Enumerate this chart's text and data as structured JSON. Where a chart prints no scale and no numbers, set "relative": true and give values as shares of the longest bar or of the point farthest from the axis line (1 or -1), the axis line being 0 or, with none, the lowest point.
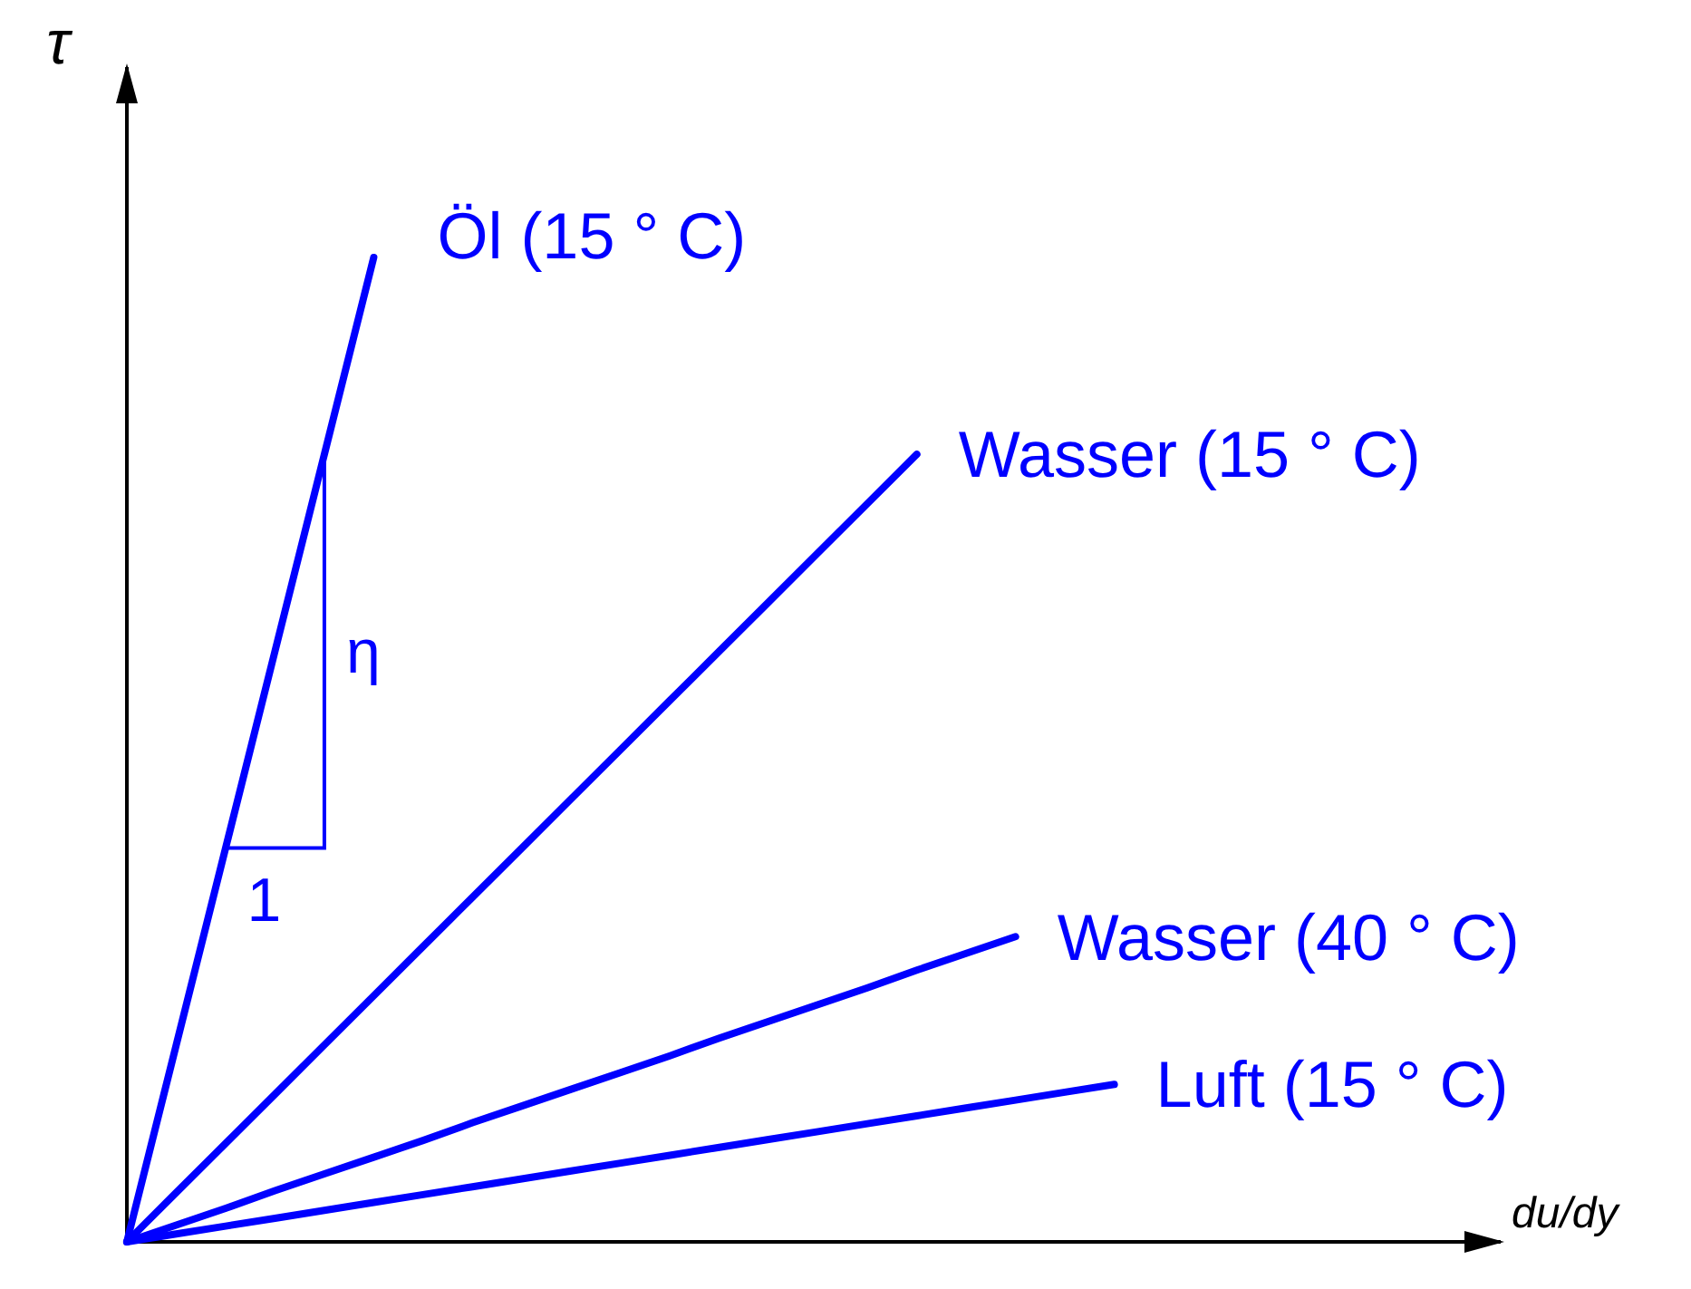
{
  "chart_data": {
    "type": "line",
    "relative": true,
    "ylabel": "τ",
    "marker": "none",
    "line_style": "solid",
    "annotations": [
      "η",
      "1",
      "du/dy"
    ],
    "categories": [
      null,
      null,
      null,
      null,
      null,
      null,
      null,
      null,
      null,
      null,
      null,
      null,
      null,
      null,
      null,
      null,
      null,
      null,
      null,
      null,
      null
    ],
    "series": [
      {
        "name": "Öl (15 ° C)",
        "color": "#0000ff",
        "values": [
          0,
          0.2,
          0.4,
          0.6,
          0.8,
          1,
          null,
          null,
          null,
          null,
          null,
          null,
          null,
          null,
          null,
          null,
          null,
          null,
          null,
          null,
          null
        ]
      },
      {
        "name": "Wasser (15 ° C)",
        "color": "#0000ff",
        "values": [
          0,
          0.05,
          0.1,
          0.15,
          0.2,
          0.25,
          0.3,
          0.35,
          0.4,
          0.45,
          0.5,
          0.55,
          0.6,
          0.65,
          0.7,
          0.75,
          0.8,
          null,
          null,
          null,
          null
        ]
      },
      {
        "name": "Wasser (40 ° C)",
        "color": "#0000ff",
        "values": [
          0,
          0.017,
          0.034,
          0.052,
          0.069,
          0.086,
          0.103,
          0.121,
          0.138,
          0.155,
          0.172,
          0.189,
          0.207,
          0.224,
          0.241,
          0.258,
          0.276,
          0.293,
          0.31,
          null,
          null
        ]
      },
      {
        "name": "Luft (15 ° C)",
        "color": "#0000ff",
        "values": [
          0,
          0.008,
          0.016,
          0.024,
          0.032,
          0.04,
          0.048,
          0.056,
          0.064,
          0.072,
          0.08,
          0.088,
          0.096,
          0.104,
          0.112,
          0.12,
          0.128,
          0.136,
          0.144,
          0.152,
          0.16
        ]
      }
    ]
  }
}
